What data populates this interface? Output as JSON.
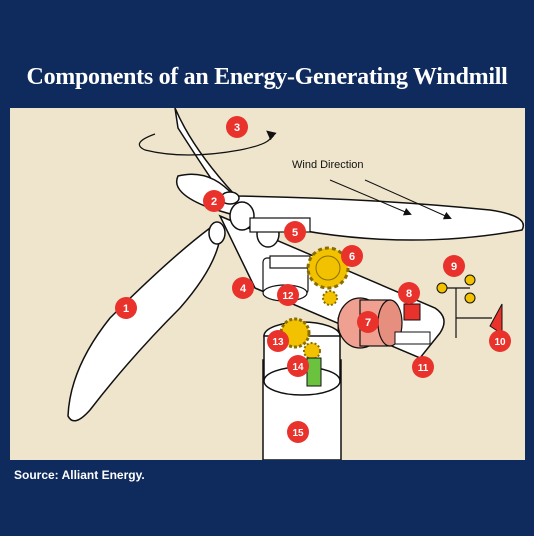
{
  "title": "Components of an Energy-Generating Windmill",
  "wind_label": "Wind Direction",
  "source": "Source: Alliant Energy.",
  "callouts": [
    "1",
    "2",
    "3",
    "4",
    "5",
    "6",
    "7",
    "8",
    "9",
    "10",
    "11",
    "12",
    "13",
    "14",
    "15"
  ],
  "colors": {
    "background": "#0f2a5c",
    "panel": "#efe5cc",
    "callout": "#e8322b",
    "gear": "#f2c200",
    "generator": "#f0a090",
    "tail_fin": "#e8322b",
    "motor": "#6ac23e"
  }
}
